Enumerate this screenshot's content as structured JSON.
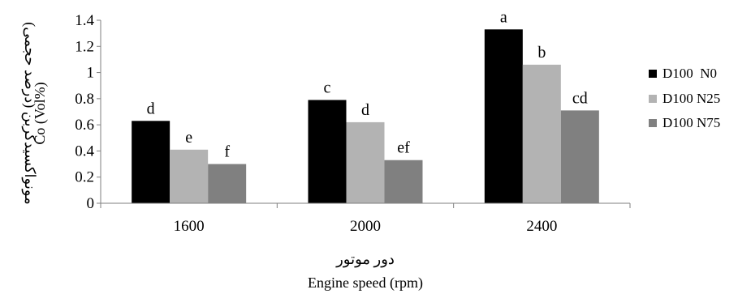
{
  "chart_data": {
    "type": "bar",
    "categories": [
      "1600",
      "2000",
      "2400"
    ],
    "series": [
      {
        "name": "D100  N0",
        "values": [
          0.63,
          0.79,
          1.33
        ],
        "labels": [
          "d",
          "c",
          "a"
        ],
        "color": "#000000"
      },
      {
        "name": "D100 N25",
        "values": [
          0.41,
          0.62,
          1.06
        ],
        "labels": [
          "e",
          "d",
          "b"
        ],
        "color": "#b3b3b3"
      },
      {
        "name": "D100 N75",
        "values": [
          0.3,
          0.33,
          0.71
        ],
        "labels": [
          "f",
          "ef",
          "cd"
        ],
        "color": "#808080"
      }
    ],
    "yticks": [
      "0",
      "0.2",
      "0.4",
      "0.6",
      "0.8",
      "1",
      "1.2",
      "1.4"
    ],
    "ylim": [
      0,
      1.4
    ],
    "ylabel_fa": "مونواکسیدکربن (درصد حجمی)",
    "ylabel_en": "Co (Vol%)",
    "xlabel_fa": "دور موتور",
    "xlabel_en": "Engine speed (rpm)",
    "legend_position": "right",
    "grid": false
  }
}
